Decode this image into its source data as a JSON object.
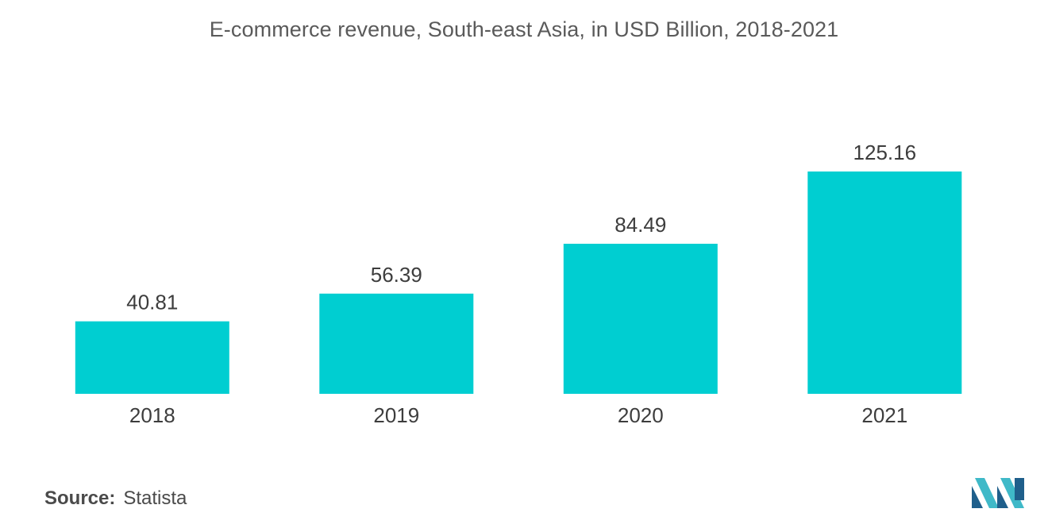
{
  "chart_data": {
    "type": "bar",
    "title": "E-commerce revenue, South-east Asia, in USD Billion, 2018-2021",
    "categories": [
      "2018",
      "2019",
      "2020",
      "2021"
    ],
    "values": [
      40.81,
      56.39,
      84.49,
      125.16
    ],
    "value_labels": [
      "40.81",
      "56.39",
      "84.49",
      "125.16"
    ],
    "xlabel": "",
    "ylabel": "",
    "ylim": [
      0,
      125.16
    ],
    "grid": false,
    "legend": "none",
    "bar_color": "#00ced1"
  },
  "source": {
    "key": "Source:",
    "value": "Statista"
  },
  "logo": {
    "icon": "mordor-intelligence-logo-icon",
    "colors": [
      "#1f5f8b",
      "#3fb9c8"
    ]
  }
}
